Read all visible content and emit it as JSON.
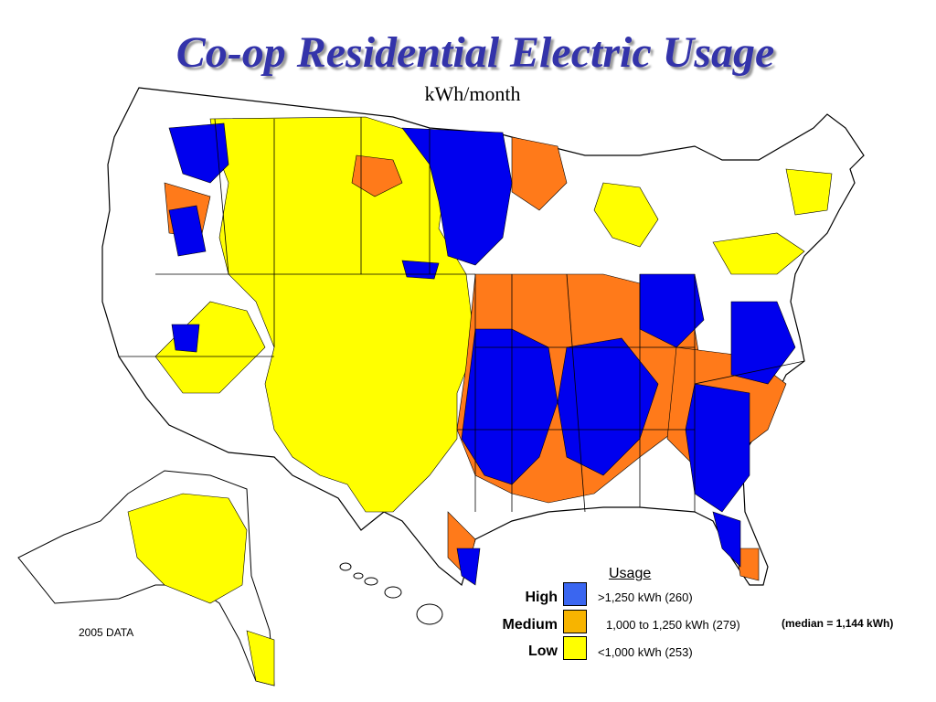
{
  "title": "Co-op Residential Electric Usage",
  "subtitle": "kWh/month",
  "legend": {
    "title": "Usage",
    "items": [
      {
        "label": "High",
        "range": ">1,250 kWh  (260)",
        "color": "#3a66f0"
      },
      {
        "label": "Medium",
        "range": "1,000 to 1,250 kWh (279)",
        "color": "#f7b400"
      },
      {
        "label": "Low",
        "range": "<1,000 kWh (253)",
        "color": "#ffff00"
      }
    ]
  },
  "median_note": "(median = 1,144 kWh)",
  "data_year": "2005 DATA",
  "map_colors": {
    "high": "#0000ee",
    "medium": "#ff7a1a",
    "low": "#ffff00",
    "unserved": "#ffffff",
    "border": "#000000"
  }
}
